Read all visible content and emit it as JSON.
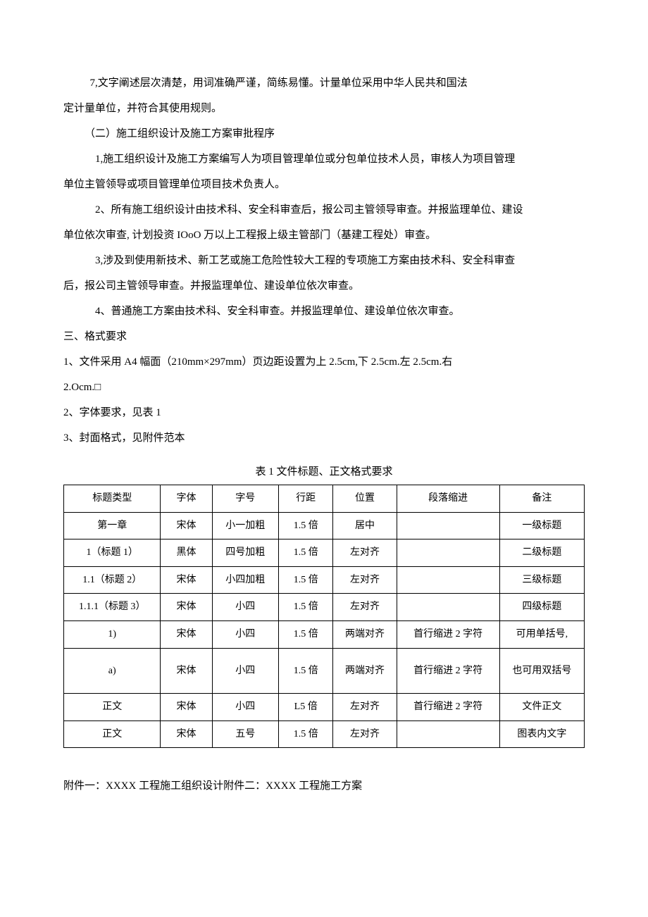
{
  "paragraphs": {
    "p1": "7,文字阐述层次清楚，用词准确严谨，简练易懂。计量单位采用中华人民共和国法",
    "p2": "定计量单位，并符合其使用规则。",
    "p3": "（二）施工组织设计及施工方案审批程序",
    "p4": "1,施工组织设计及施工方案编写人为项目管理单位或分包单位技术人员，审核人为项目管理",
    "p5": "单位主管领导或项目管理单位项目技术负责人。",
    "p6": "2、所有施工组织设计由技术科、安全科审查后，报公司主管领导审查。并报监理单位、建设",
    "p7": "单位依次审查, 计划投资 IOoO 万以上工程报上级主管部门（基建工程处）审查。",
    "p8": "3,涉及到使用新技术、新工艺或施工危险性较大工程的专项施工方案由技术科、安全科审查",
    "p9": "后，报公司主管领导审查。并报监理单位、建设单位依次审查。",
    "p10": "4、普通施工方案由技术科、安全科审查。并报监理单位、建设单位依次审查。",
    "p11": "三、格式要求",
    "p12": "1、文件采用 A4 幅面（210mm×297mm）页边距设置为上 2.5cm,下 2.5cm.左 2.5cm.右",
    "p13": "2.Ocm.□",
    "p14": "2、字体要求，见表 1",
    "p15": "3、封面格式，见附件范本"
  },
  "table_caption": "表 1 文件标题、正文格式要求",
  "table": {
    "headers": [
      "标题类型",
      "字体",
      "字号",
      "行距",
      "位置",
      "段落缩进",
      "备注"
    ],
    "rows": [
      [
        "第一章",
        "宋体",
        "小一加粗",
        "1.5 倍",
        "居中",
        "",
        "一级标题"
      ],
      [
        "1（标题 1）",
        "黑体",
        "四号加粗",
        "1.5 倍",
        "左对齐",
        "",
        "二级标题"
      ],
      [
        "1.1（标题 2）",
        "宋体",
        "小四加粗",
        "1.5 倍",
        "左对齐",
        "",
        "三级标题"
      ],
      [
        "1.1.1（标题 3）",
        "宋体",
        "小四",
        "1.5 倍",
        "左对齐",
        "",
        "四级标题"
      ],
      [
        "1)",
        "宋体",
        "小四",
        "1.5 倍",
        "两端对齐",
        "首行缩进 2 字符",
        "可用单括号,"
      ],
      [
        "a)",
        "宋体",
        "小四",
        "1.5 倍",
        "两端对齐",
        "首行缩进 2 字符",
        "也可用双括号"
      ],
      [
        "正文",
        "宋体",
        "小四",
        "L5 倍",
        "左对齐",
        "首行缩进 2 字符",
        "文件正文"
      ],
      [
        "正文",
        "宋体",
        "五号",
        "1.5 倍",
        "左对齐",
        "",
        "图表内文字"
      ]
    ]
  },
  "attachment": "附件一：XXXX 工程施工组织设计附件二：XXXX 工程施工方案"
}
